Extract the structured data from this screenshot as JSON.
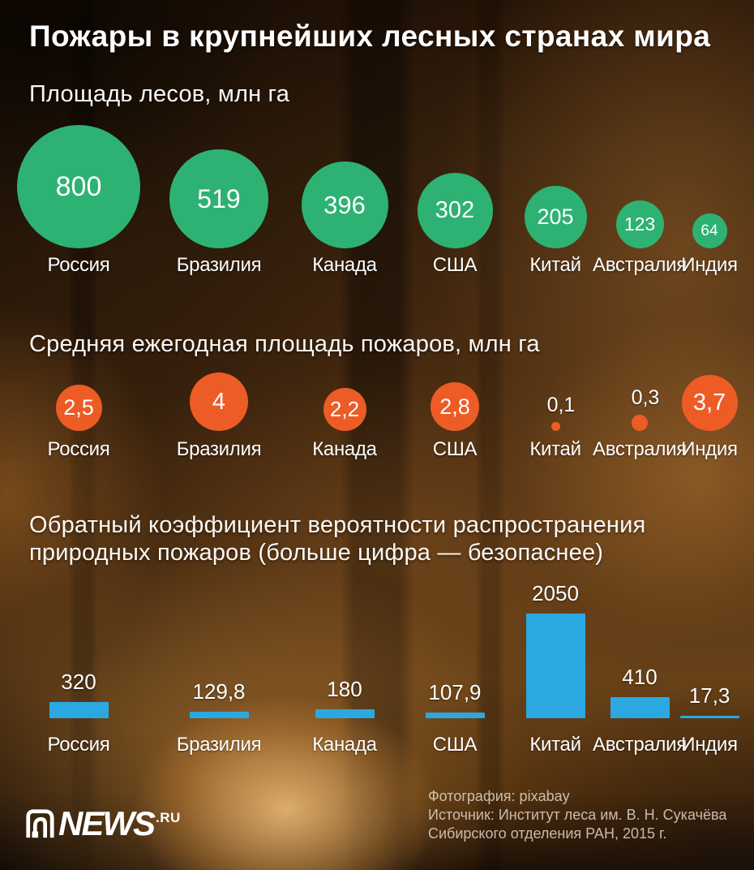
{
  "page": {
    "title": "Пожары в крупнейших лесных странах мира"
  },
  "chart_data": [
    {
      "type": "bubble",
      "title": "Площадь лесов, млн га",
      "categories": [
        "Россия",
        "Бразилия",
        "Канада",
        "США",
        "Китай",
        "Австралия",
        "Индия"
      ],
      "values": [
        800,
        519,
        396,
        302,
        205,
        123,
        64
      ],
      "labels": [
        "800",
        "519",
        "396",
        "302",
        "205",
        "123",
        "64"
      ],
      "color": "#2db273",
      "legend": "none",
      "axes": "none"
    },
    {
      "type": "bubble",
      "title": "Средняя ежегодная площадь пожаров, млн га",
      "categories": [
        "Россия",
        "Бразилия",
        "Канада",
        "США",
        "Китай",
        "Австралия",
        "Индия"
      ],
      "values": [
        2.5,
        4,
        2.2,
        2.8,
        0.1,
        0.3,
        3.7
      ],
      "labels": [
        "2,5",
        "4",
        "2,2",
        "2,8",
        "0,1",
        "0,3",
        "3,7"
      ],
      "color": "#ed5c25",
      "legend": "none",
      "axes": "none"
    },
    {
      "type": "bar",
      "title": "Обратный коэффициент вероятности распространения природных пожаров (больше цифра — безопаснее)",
      "title_lines": [
        "Обратный коэффициент вероятности распространения",
        "природных пожаров (больше цифра — безопаснее)"
      ],
      "categories": [
        "Россия",
        "Бразилия",
        "Канада",
        "США",
        "Китай",
        "Австралия",
        "Индия"
      ],
      "values": [
        320,
        129.8,
        180,
        107.9,
        2050,
        410,
        17.3
      ],
      "labels": [
        "320",
        "129,8",
        "180",
        "107,9",
        "2050",
        "410",
        "17,3"
      ],
      "color": "#2ba8e0",
      "ylim": [
        0,
        2050
      ],
      "legend": "none",
      "axes": "none"
    }
  ],
  "footer": {
    "logo_text": "NEWS",
    "logo_suffix": ".RU",
    "credits": [
      "Фотография: pixabay",
      "Источник: Институт леса им. В. Н. Сукачёва",
      "Сибирского отделения РАН, 2015 г."
    ]
  }
}
